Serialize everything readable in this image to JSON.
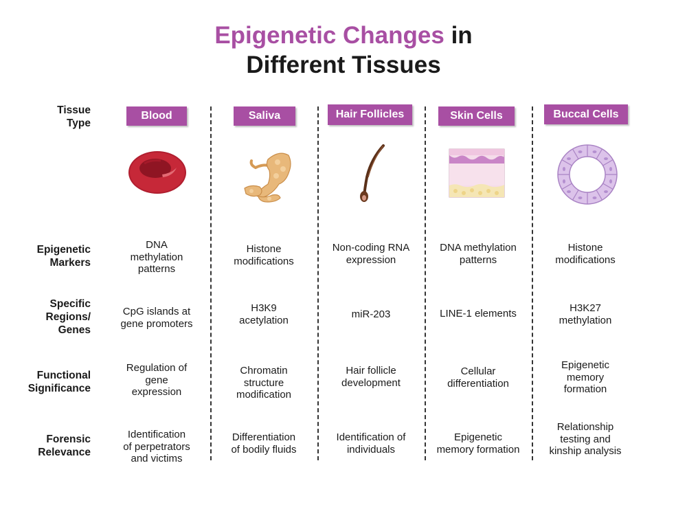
{
  "title": {
    "part1": "Epigenetic Changes",
    "part2": " in",
    "line2": "Different Tissues"
  },
  "row_labels": {
    "tissue_type": "Tissue\nType",
    "epigenetic_markers": "Epigenetic\nMarkers",
    "specific_regions": "Specific\nRegions/\nGenes",
    "functional_significance": "Functional\nSignificance",
    "forensic_relevance": "Forensic\nRelevance"
  },
  "columns": [
    {
      "tissue": "Blood",
      "icon": "red-blood-cell-icon",
      "markers": "DNA\nmethylation\npatterns",
      "regions": "CpG islands at\ngene promoters",
      "function": "Regulation of\ngene\nexpression",
      "forensic": "Identification\nof perpetrators\nand victims"
    },
    {
      "tissue": "Saliva",
      "icon": "salivary-gland-icon",
      "markers": "Histone\nmodifications",
      "regions": "H3K9\nacetylation",
      "function": "Chromatin\nstructure\nmodification",
      "forensic": "Differentiation\nof bodily fluids"
    },
    {
      "tissue": "Hair Follicles",
      "icon": "hair-follicle-icon",
      "markers": "Non-coding RNA\nexpression",
      "regions": "miR-203",
      "function": "Hair follicle\ndevelopment",
      "forensic": "Identification of\nindividuals"
    },
    {
      "tissue": "Skin Cells",
      "icon": "skin-layers-icon",
      "markers": "DNA methylation\npatterns",
      "regions": "LINE-1 elements",
      "function": "Cellular\ndifferentiation",
      "forensic": "Epigenetic\nmemory formation"
    },
    {
      "tissue": "Buccal Cells",
      "icon": "buccal-epithelium-icon",
      "markers": "Histone\nmodifications",
      "regions": "H3K27\nmethylation",
      "function": "Epigenetic\nmemory\nformation",
      "forensic": "Relationship\ntesting and\nkinship analysis"
    }
  ],
  "colors": {
    "accent": "#a84fa3",
    "text": "#1a1a1a",
    "divider": "#333333"
  }
}
